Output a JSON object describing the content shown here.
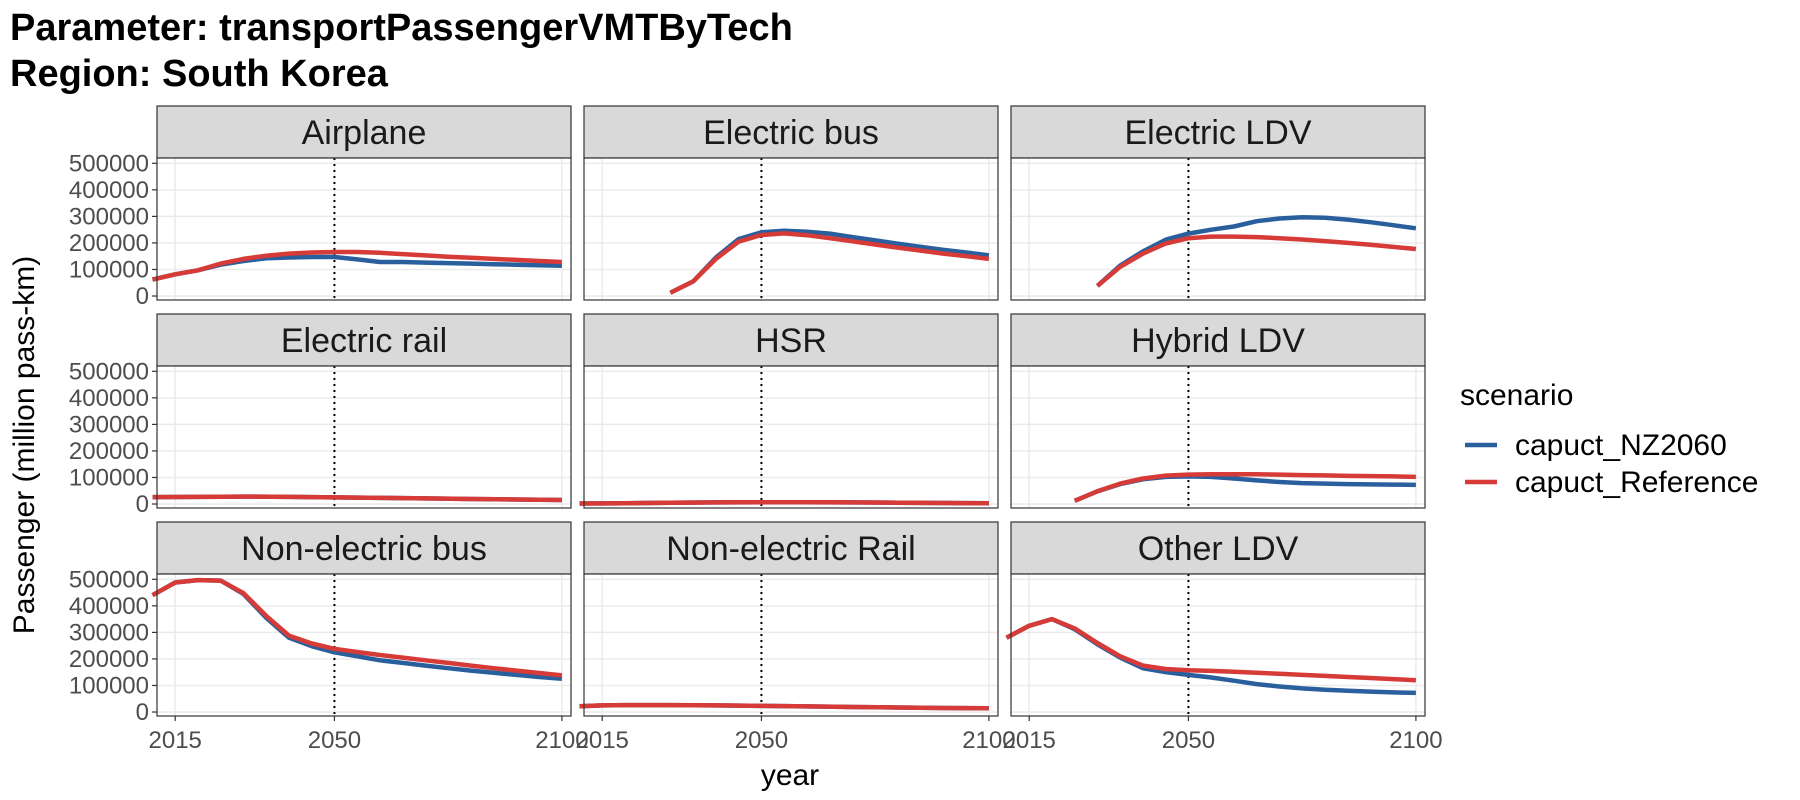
{
  "title_line1": "Parameter: transportPassengerVMTByTech",
  "title_line2": "Region: South Korea",
  "chart_data": {
    "type": "line",
    "facet_layout": "3x3",
    "xlabel": "year",
    "ylabel": "Passenger (million pass-km)",
    "xlim": [
      2011,
      2102
    ],
    "ylim": [
      -15000,
      520000
    ],
    "x_ticks": [
      2015,
      2050,
      2100
    ],
    "y_ticks": [
      0,
      100000,
      200000,
      300000,
      400000,
      500000
    ],
    "reference_line_x": 2050,
    "grid": true,
    "legend": {
      "title": "scenario",
      "position": "right",
      "entries": [
        {
          "name": "capuct_NZ2060",
          "color": "#2a5f9e"
        },
        {
          "name": "capuct_Reference",
          "color": "#d63b38"
        }
      ]
    },
    "panels": [
      {
        "label": "Airplane",
        "series": [
          {
            "name": "capuct_NZ2060",
            "x": [
              2010,
              2015,
              2020,
              2025,
              2030,
              2035,
              2040,
              2045,
              2050,
              2055,
              2060,
              2065,
              2070,
              2075,
              2080,
              2085,
              2090,
              2095,
              2100
            ],
            "y": [
              62000,
              82000,
              97000,
              118000,
              132000,
              142000,
              145000,
              147000,
              147000,
              138000,
              128000,
              128000,
              126000,
              124000,
              122000,
              120000,
              118000,
              116000,
              114000
            ]
          },
          {
            "name": "capuct_Reference",
            "x": [
              2010,
              2015,
              2020,
              2025,
              2030,
              2035,
              2040,
              2045,
              2050,
              2055,
              2060,
              2065,
              2070,
              2075,
              2080,
              2085,
              2090,
              2095,
              2100
            ],
            "y": [
              62000,
              82000,
              97000,
              122000,
              140000,
              152000,
              160000,
              164000,
              166000,
              166000,
              163000,
              158000,
              153000,
              148000,
              144000,
              140000,
              136000,
              132000,
              128000
            ]
          }
        ]
      },
      {
        "label": "Electric bus",
        "series": [
          {
            "name": "capuct_NZ2060",
            "x": [
              2030,
              2035,
              2040,
              2045,
              2050,
              2055,
              2060,
              2065,
              2070,
              2075,
              2080,
              2085,
              2090,
              2095,
              2100
            ],
            "y": [
              12000,
              55000,
              145000,
              215000,
              240000,
              246000,
              242000,
              235000,
              222000,
              210000,
              197000,
              185000,
              174000,
              164000,
              153000
            ]
          },
          {
            "name": "capuct_Reference",
            "x": [
              2030,
              2035,
              2040,
              2045,
              2050,
              2055,
              2060,
              2065,
              2070,
              2075,
              2080,
              2085,
              2090,
              2095,
              2100
            ],
            "y": [
              12000,
              55000,
              140000,
              205000,
              230000,
              236000,
              229000,
              218000,
              206000,
              194000,
              182000,
              171000,
              160000,
              150000,
              140000
            ]
          }
        ]
      },
      {
        "label": "Electric LDV",
        "series": [
          {
            "name": "capuct_NZ2060",
            "x": [
              2030,
              2035,
              2040,
              2045,
              2050,
              2055,
              2060,
              2065,
              2070,
              2075,
              2080,
              2085,
              2090,
              2095,
              2100
            ],
            "y": [
              38000,
              115000,
              168000,
              212000,
              235000,
              250000,
              262000,
              282000,
              292000,
              297000,
              295000,
              288000,
              278000,
              267000,
              255000
            ]
          },
          {
            "name": "capuct_Reference",
            "x": [
              2030,
              2035,
              2040,
              2045,
              2050,
              2055,
              2060,
              2065,
              2070,
              2075,
              2080,
              2085,
              2090,
              2095,
              2100
            ],
            "y": [
              38000,
              110000,
              160000,
              198000,
              218000,
              224000,
              224000,
              222000,
              218000,
              213000,
              207000,
              200000,
              193000,
              185000,
              177000
            ]
          }
        ]
      },
      {
        "label": "Electric rail",
        "series": [
          {
            "name": "capuct_NZ2060",
            "x": [
              2010,
              2020,
              2030,
              2040,
              2050,
              2060,
              2070,
              2080,
              2090,
              2100
            ],
            "y": [
              26000,
              27000,
              28000,
              27000,
              25000,
              23000,
              21000,
              19000,
              17000,
              15000
            ]
          },
          {
            "name": "capuct_Reference",
            "x": [
              2010,
              2020,
              2030,
              2040,
              2050,
              2060,
              2070,
              2080,
              2090,
              2100
            ],
            "y": [
              26000,
              27000,
              28000,
              27000,
              25000,
              23000,
              21000,
              19000,
              17000,
              15000
            ]
          }
        ]
      },
      {
        "label": "HSR",
        "series": [
          {
            "name": "capuct_NZ2060",
            "x": [
              2010,
              2020,
              2030,
              2040,
              2050,
              2060,
              2070,
              2080,
              2090,
              2100
            ],
            "y": [
              2000,
              3000,
              5000,
              6000,
              6500,
              6500,
              6000,
              5000,
              4000,
              3000
            ]
          },
          {
            "name": "capuct_Reference",
            "x": [
              2010,
              2020,
              2030,
              2040,
              2050,
              2060,
              2070,
              2080,
              2090,
              2100
            ],
            "y": [
              2000,
              3000,
              5000,
              6000,
              6500,
              6500,
              6000,
              5000,
              4000,
              3000
            ]
          }
        ]
      },
      {
        "label": "Hybrid LDV",
        "series": [
          {
            "name": "capuct_NZ2060",
            "x": [
              2025,
              2030,
              2035,
              2040,
              2045,
              2050,
              2055,
              2060,
              2065,
              2070,
              2075,
              2080,
              2085,
              2090,
              2095,
              2100
            ],
            "y": [
              12000,
              48000,
              75000,
              93000,
              102000,
              104000,
              102000,
              96000,
              89000,
              83000,
              79000,
              77000,
              75000,
              74000,
              73000,
              72000
            ]
          },
          {
            "name": "capuct_Reference",
            "x": [
              2025,
              2030,
              2035,
              2040,
              2045,
              2050,
              2055,
              2060,
              2065,
              2070,
              2075,
              2080,
              2085,
              2090,
              2095,
              2100
            ],
            "y": [
              12000,
              48000,
              77000,
              96000,
              107000,
              111000,
              112000,
              112000,
              112000,
              111000,
              109000,
              108000,
              106000,
              105000,
              104000,
              102000
            ]
          }
        ]
      },
      {
        "label": "Non-electric bus",
        "series": [
          {
            "name": "capuct_NZ2060",
            "x": [
              2010,
              2015,
              2020,
              2025,
              2030,
              2035,
              2040,
              2045,
              2050,
              2055,
              2060,
              2065,
              2070,
              2075,
              2080,
              2085,
              2090,
              2095,
              2100
            ],
            "y": [
              440000,
              488000,
              497000,
              495000,
              445000,
              355000,
              280000,
              248000,
              225000,
              210000,
              195000,
              185000,
              175000,
              165000,
              156000,
              148000,
              140000,
              132000,
              125000
            ]
          },
          {
            "name": "capuct_Reference",
            "x": [
              2010,
              2015,
              2020,
              2025,
              2030,
              2035,
              2040,
              2045,
              2050,
              2055,
              2060,
              2065,
              2070,
              2075,
              2080,
              2085,
              2090,
              2095,
              2100
            ],
            "y": [
              440000,
              488000,
              497000,
              495000,
              448000,
              362000,
              288000,
              258000,
              238000,
              226000,
              215000,
              205000,
              195000,
              185000,
              175000,
              165000,
              156000,
              147000,
              138000
            ]
          }
        ]
      },
      {
        "label": "Non-electric Rail",
        "series": [
          {
            "name": "capuct_NZ2060",
            "x": [
              2010,
              2015,
              2020,
              2030,
              2040,
              2050,
              2060,
              2070,
              2080,
              2090,
              2100
            ],
            "y": [
              22000,
              25000,
              26000,
              26000,
              25000,
              23000,
              21000,
              19000,
              17000,
              15000,
              14000
            ]
          },
          {
            "name": "capuct_Reference",
            "x": [
              2010,
              2015,
              2020,
              2030,
              2040,
              2050,
              2060,
              2070,
              2080,
              2090,
              2100
            ],
            "y": [
              22000,
              25000,
              26000,
              26000,
              25000,
              23000,
              21000,
              19000,
              17000,
              15000,
              14000
            ]
          }
        ]
      },
      {
        "label": "Other LDV",
        "series": [
          {
            "name": "capuct_NZ2060",
            "x": [
              2010,
              2015,
              2020,
              2025,
              2030,
              2035,
              2040,
              2045,
              2050,
              2055,
              2060,
              2065,
              2070,
              2075,
              2080,
              2085,
              2090,
              2095,
              2100
            ],
            "y": [
              280000,
              325000,
              350000,
              312000,
              255000,
              205000,
              165000,
              150000,
              140000,
              130000,
              118000,
              105000,
              96000,
              89000,
              84000,
              80000,
              77000,
              74000,
              72000
            ]
          },
          {
            "name": "capuct_Reference",
            "x": [
              2010,
              2015,
              2020,
              2025,
              2030,
              2035,
              2040,
              2045,
              2050,
              2055,
              2060,
              2065,
              2070,
              2075,
              2080,
              2085,
              2090,
              2095,
              2100
            ],
            "y": [
              280000,
              325000,
              350000,
              315000,
              260000,
              210000,
              175000,
              162000,
              157000,
              155000,
              152000,
              148000,
              144000,
              140000,
              136000,
              132000,
              128000,
              124000,
              120000
            ]
          }
        ]
      }
    ]
  }
}
